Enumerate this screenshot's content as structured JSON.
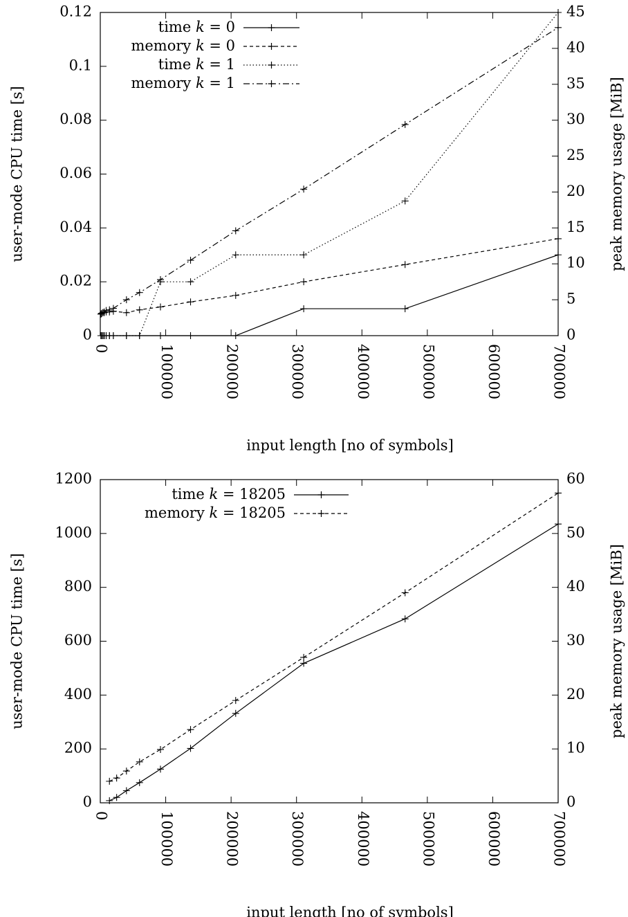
{
  "chart_data": [
    {
      "type": "line",
      "xlabel": "input length [no of symbols]",
      "ylabel": "user-mode CPU time [s]",
      "y2label": "peak memory usage [MiB]",
      "xlim": [
        0,
        700000
      ],
      "ylim": [
        0,
        0.12
      ],
      "y2lim": [
        0,
        45
      ],
      "x_ticks": [
        "0",
        "100000",
        "200000",
        "300000",
        "400000",
        "500000",
        "600000",
        "700000"
      ],
      "y_ticks": [
        "0",
        "0.02",
        "0.04",
        "0.06",
        "0.08",
        "0.1",
        "0.12"
      ],
      "y2_ticks": [
        "0",
        "5",
        "10",
        "15",
        "20",
        "25",
        "30",
        "35",
        "40",
        "45"
      ],
      "legend_position": "top-left",
      "grid": false,
      "x": [
        1000,
        2000,
        4000,
        6000,
        9000,
        14000,
        20000,
        40000,
        60000,
        92000,
        138000,
        207000,
        311000,
        466000,
        700000
      ],
      "series": [
        {
          "name": "time k = 0",
          "axis": "left",
          "style": "solid",
          "values": [
            0,
            0,
            0,
            0,
            0,
            0,
            0,
            0,
            0,
            0,
            0,
            0,
            0.01,
            0.01,
            0.03
          ]
        },
        {
          "name": "memory k = 0",
          "axis": "right",
          "style": "dashed",
          "values": [
            3.0,
            3.1,
            3.2,
            3.2,
            3.3,
            3.3,
            3.4,
            3.2,
            3.6,
            4.0,
            4.7,
            5.6,
            7.5,
            9.9,
            13.5
          ]
        },
        {
          "name": "time k = 1",
          "axis": "left",
          "style": "dotted",
          "values": [
            0,
            0,
            0,
            0,
            0,
            0,
            0,
            0,
            0,
            0.02,
            0.02,
            0.03,
            0.03,
            0.05,
            0.12
          ]
        },
        {
          "name": "memory k = 1",
          "axis": "right",
          "style": "dashdot",
          "values": [
            3.0,
            3.1,
            3.2,
            3.3,
            3.5,
            3.6,
            3.8,
            5.0,
            6.0,
            7.8,
            10.5,
            14.6,
            20.4,
            29.4,
            42.9
          ]
        }
      ]
    },
    {
      "type": "line",
      "xlabel": "input length [no of symbols]",
      "ylabel": "user-mode CPU time [s]",
      "y2label": "peak memory usage [MiB]",
      "xlim": [
        0,
        700000
      ],
      "ylim": [
        0,
        1200
      ],
      "y2lim": [
        0,
        60
      ],
      "x_ticks": [
        "0",
        "100000",
        "200000",
        "300000",
        "400000",
        "500000",
        "600000",
        "700000"
      ],
      "y_ticks": [
        "0",
        "200",
        "400",
        "600",
        "800",
        "1000",
        "1200"
      ],
      "y2_ticks": [
        "0",
        "10",
        "20",
        "30",
        "40",
        "50",
        "60"
      ],
      "legend_position": "top-left",
      "grid": false,
      "x": [
        14000,
        25000,
        40000,
        60000,
        92000,
        138000,
        207000,
        311000,
        466000,
        700000
      ],
      "series": [
        {
          "name": "time k = 18205",
          "axis": "left",
          "style": "solid",
          "values": [
            8,
            20,
            45,
            75,
            125,
            202,
            332,
            518,
            683,
            1035
          ]
        },
        {
          "name": "memory k = 18205",
          "axis": "right",
          "style": "dashed",
          "values": [
            4.0,
            4.6,
            5.9,
            7.6,
            9.9,
            13.6,
            19.0,
            27.0,
            39.0,
            57.5
          ]
        }
      ]
    }
  ]
}
